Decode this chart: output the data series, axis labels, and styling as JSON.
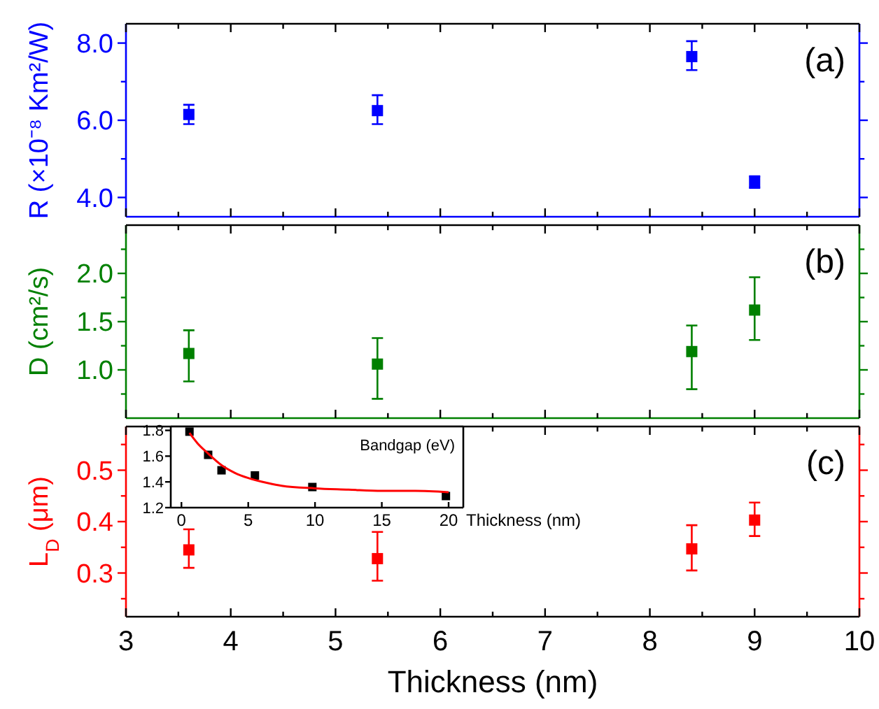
{
  "chart_data": [
    {
      "type": "scatter",
      "ylabel": "R (×10⁻⁸ Km²/W)",
      "annotations": [
        "(a)"
      ],
      "marker": "square",
      "tick_labels": "y",
      "xlim": [
        3,
        10
      ],
      "xticks": [
        3,
        {
          "value": 3.5,
          "label": null
        },
        4,
        {
          "value": 4.5,
          "label": null
        },
        5,
        {
          "value": 5.5,
          "label": null
        },
        6,
        {
          "value": 6.5,
          "label": null
        },
        7,
        {
          "value": 7.5,
          "label": null
        },
        8,
        {
          "value": 8.5,
          "label": null
        },
        9,
        {
          "value": 9.5,
          "label": null
        },
        10
      ],
      "ylim": [
        3.5,
        8.5
      ],
      "yticks": [
        {
          "value": 4,
          "label": "4.0"
        },
        {
          "value": 5,
          "label": null
        },
        {
          "value": 6,
          "label": "6.0"
        },
        {
          "value": 7,
          "label": null
        },
        {
          "value": 8,
          "label": "8.0"
        }
      ],
      "x": [
        3.6,
        5.4,
        8.4,
        9.0
      ],
      "series": [
        {
          "color": "#0000ff",
          "values": [
            6.15,
            6.25,
            7.65,
            4.4
          ],
          "errors": [
            [
              5.9,
              6.4
            ],
            [
              5.9,
              6.65
            ],
            [
              7.3,
              8.05
            ],
            [
              4.25,
              4.55
            ]
          ]
        }
      ]
    },
    {
      "type": "scatter",
      "ylabel": "D (cm²/s)",
      "annotations": [
        "(b)"
      ],
      "marker": "square",
      "tick_labels": "y",
      "xlim": [
        3,
        10
      ],
      "xticks": [
        3,
        {
          "value": 3.5,
          "label": null
        },
        4,
        {
          "value": 4.5,
          "label": null
        },
        5,
        {
          "value": 5.5,
          "label": null
        },
        6,
        {
          "value": 6.5,
          "label": null
        },
        7,
        {
          "value": 7.5,
          "label": null
        },
        8,
        {
          "value": 8.5,
          "label": null
        },
        9,
        {
          "value": 9.5,
          "label": null
        },
        10
      ],
      "ylim": [
        0.5,
        2.5
      ],
      "yticks": [
        {
          "value": 0.75,
          "label": null
        },
        {
          "value": 1,
          "label": "1.0"
        },
        {
          "value": 1.25,
          "label": null
        },
        1.5,
        {
          "value": 1.75,
          "label": null
        },
        {
          "value": 2,
          "label": "2.0"
        },
        {
          "value": 2.25,
          "label": null
        }
      ],
      "x": [
        3.6,
        5.4,
        8.4,
        9.0
      ],
      "series": [
        {
          "color": "#008000",
          "values": [
            1.17,
            1.06,
            1.19,
            1.62
          ],
          "errors": [
            [
              0.88,
              1.41
            ],
            [
              0.7,
              1.33
            ],
            [
              0.8,
              1.46
            ],
            [
              1.31,
              1.96
            ]
          ]
        }
      ]
    },
    {
      "type": "scatter",
      "xlabel": "Thickness (nm)",
      "ylabel": "L$_{D}$ (μm)",
      "annotations": [
        "(c)"
      ],
      "marker": "square",
      "xlim": [
        3,
        10
      ],
      "xticks": [
        3,
        {
          "value": 3.5,
          "label": null
        },
        4,
        {
          "value": 4.5,
          "label": null
        },
        5,
        {
          "value": 5.5,
          "label": null
        },
        6,
        {
          "value": 6.5,
          "label": null
        },
        7,
        {
          "value": 7.5,
          "label": null
        },
        8,
        {
          "value": 8.5,
          "label": null
        },
        9,
        {
          "value": 9.5,
          "label": null
        },
        10
      ],
      "ylim": [
        0.215,
        0.585
      ],
      "yticks": [
        {
          "value": 0.25,
          "label": null
        },
        0.3,
        {
          "value": 0.35,
          "label": null
        },
        0.4,
        {
          "value": 0.45,
          "label": null
        },
        0.5,
        {
          "value": 0.55,
          "label": null
        }
      ],
      "x": [
        3.6,
        5.4,
        8.4,
        9.0
      ],
      "series": [
        {
          "color": "#ff0000",
          "values": [
            0.345,
            0.328,
            0.347,
            0.403
          ],
          "errors": [
            [
              0.31,
              0.385
            ],
            [
              0.285,
              0.38
            ],
            [
              0.305,
              0.393
            ],
            [
              0.372,
              0.437
            ]
          ]
        }
      ]
    },
    {
      "type": "scatter",
      "xlabel": "Thickness (nm)",
      "ylabel": "Bandgap (eV)",
      "xlim": [
        -0.8,
        21.1
      ],
      "xticks": [
        0,
        5,
        10,
        15,
        20
      ],
      "ylim": [
        1.2,
        1.83
      ],
      "yticks": [
        1.2,
        1.4,
        1.6,
        1.8
      ],
      "series": [
        {
          "color": "#000000",
          "marker": "square",
          "x": [
            0.6,
            2,
            3,
            5.5,
            9.8,
            19.8
          ],
          "values": [
            1.79,
            1.61,
            1.49,
            1.45,
            1.36,
            1.29
          ]
        },
        {
          "type": "line",
          "color": "#ff0000",
          "x": [
            0.6,
            1.2,
            2,
            3,
            4,
            5,
            6.5,
            7.5,
            10,
            12.5,
            15,
            17.5,
            20
          ],
          "values": [
            1.78,
            1.7,
            1.62,
            1.53,
            1.47,
            1.43,
            1.39,
            1.37,
            1.35,
            1.34,
            1.33,
            1.33,
            1.32
          ]
        }
      ]
    }
  ]
}
